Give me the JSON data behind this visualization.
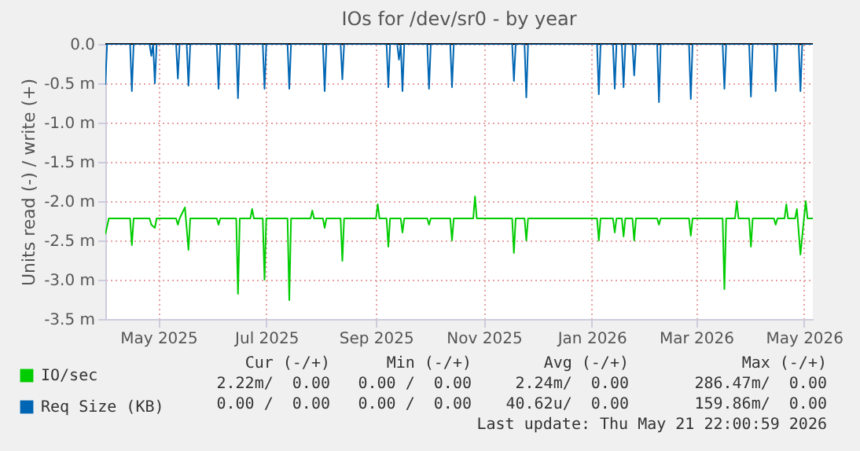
{
  "chart_data": {
    "type": "line",
    "title": "IOs for /dev/sr0 - by year",
    "ylabel": "Units read (-) / write (+)",
    "xlim": [
      "2025-04-16",
      "2026-05-21"
    ],
    "xticks": [
      {
        "value": "2025-05-16",
        "label": "May 2025"
      },
      {
        "value": "2025-07-16",
        "label": "Jul 2025"
      },
      {
        "value": "2025-09-16",
        "label": "Sep 2025"
      },
      {
        "value": "2025-11-16",
        "label": "Nov 2025"
      },
      {
        "value": "2026-01-16",
        "label": "Jan 2026"
      },
      {
        "value": "2026-03-16",
        "label": "Mar 2026"
      },
      {
        "value": "2026-05-16",
        "label": "May 2026"
      }
    ],
    "ylim": [
      -3.5,
      0
    ],
    "yticks": [
      {
        "value": 0,
        "label": "0.0"
      },
      {
        "value": -0.5,
        "label": "-0.5 m"
      },
      {
        "value": -1,
        "label": "-1.0 m"
      },
      {
        "value": -1.5,
        "label": "-1.5 m"
      },
      {
        "value": -2,
        "label": "-2.0 m"
      },
      {
        "value": -2.5,
        "label": "-2.5 m"
      },
      {
        "value": -3,
        "label": "-3.0 m"
      },
      {
        "value": -3.5,
        "label": "-3.5 m"
      }
    ],
    "grid": true,
    "legend": "bottom left",
    "ref_lines": [
      {
        "axis": "y",
        "value": 0,
        "color": "#000000"
      }
    ],
    "series": [
      {
        "name": "IO/sec",
        "color": "#00cc00",
        "x": [
          "2025-04-16",
          "2025-04-18",
          "2025-04-30",
          "2025-05-01",
          "2025-05-02",
          "2025-05-11",
          "2025-05-12",
          "2025-05-14",
          "2025-05-15",
          "2025-05-26",
          "2025-05-27",
          "2025-05-28",
          "2025-05-31",
          "2025-06-02",
          "2025-06-03",
          "2025-06-18",
          "2025-06-19",
          "2025-06-20",
          "2025-06-29",
          "2025-06-30",
          "2025-07-01",
          "2025-07-07",
          "2025-07-08",
          "2025-07-09",
          "2025-07-14",
          "2025-07-15",
          "2025-07-16",
          "2025-07-28",
          "2025-07-29",
          "2025-07-30",
          "2025-08-10",
          "2025-08-11",
          "2025-08-12",
          "2025-08-17",
          "2025-08-18",
          "2025-08-19",
          "2025-08-27",
          "2025-08-28",
          "2025-08-29",
          "2025-09-16",
          "2025-09-17",
          "2025-09-18",
          "2025-09-22",
          "2025-09-23",
          "2025-09-24",
          "2025-09-30",
          "2025-10-01",
          "2025-10-02",
          "2025-10-15",
          "2025-10-16",
          "2025-10-17",
          "2025-10-28",
          "2025-10-29",
          "2025-10-30",
          "2025-11-10",
          "2025-11-11",
          "2025-11-12",
          "2025-12-02",
          "2025-12-03",
          "2025-12-04",
          "2025-12-09",
          "2025-12-10",
          "2025-12-11",
          "2026-01-19",
          "2026-01-20",
          "2026-01-21",
          "2026-01-28",
          "2026-01-29",
          "2026-01-30",
          "2026-02-02",
          "2026-02-03",
          "2026-02-04",
          "2026-02-08",
          "2026-02-09",
          "2026-02-10",
          "2026-02-22",
          "2026-02-23",
          "2026-02-24",
          "2026-03-12",
          "2026-03-13",
          "2026-03-14",
          "2026-03-31",
          "2026-04-01",
          "2026-04-02",
          "2026-04-07",
          "2026-04-08",
          "2026-04-09",
          "2026-04-15",
          "2026-04-16",
          "2026-04-17",
          "2026-04-29",
          "2026-04-30",
          "2026-05-01",
          "2026-05-05",
          "2026-05-06",
          "2026-05-07",
          "2026-05-11",
          "2026-05-12",
          "2026-05-14",
          "2026-05-16",
          "2026-05-17",
          "2026-05-18",
          "2026-05-21"
        ],
        "values": [
          -2.42,
          -2.22,
          -2.22,
          -2.56,
          -2.22,
          -2.22,
          -2.3,
          -2.34,
          -2.22,
          -2.22,
          -2.3,
          -2.22,
          -2.08,
          -2.62,
          -2.22,
          -2.22,
          -2.3,
          -2.22,
          -2.22,
          -3.18,
          -2.22,
          -2.22,
          -2.1,
          -2.22,
          -2.22,
          -3.0,
          -2.22,
          -2.22,
          -3.26,
          -2.22,
          -2.22,
          -2.12,
          -2.22,
          -2.22,
          -2.34,
          -2.22,
          -2.22,
          -2.76,
          -2.22,
          -2.22,
          -2.04,
          -2.22,
          -2.22,
          -2.58,
          -2.22,
          -2.22,
          -2.4,
          -2.22,
          -2.22,
          -2.3,
          -2.22,
          -2.22,
          -2.5,
          -2.22,
          -2.22,
          -1.94,
          -2.22,
          -2.22,
          -2.66,
          -2.22,
          -2.22,
          -2.5,
          -2.22,
          -2.22,
          -2.5,
          -2.22,
          -2.22,
          -2.4,
          -2.22,
          -2.22,
          -2.45,
          -2.22,
          -2.22,
          -2.5,
          -2.22,
          -2.22,
          -2.3,
          -2.22,
          -2.22,
          -2.44,
          -2.22,
          -2.22,
          -3.12,
          -2.22,
          -2.22,
          -2.0,
          -2.22,
          -2.22,
          -2.58,
          -2.22,
          -2.22,
          -2.3,
          -2.22,
          -2.22,
          -2.04,
          -2.22,
          -2.22,
          -2.1,
          -2.68,
          -2.22,
          -2.0,
          -2.22,
          -2.22
        ]
      },
      {
        "name": "Req Size (KB)",
        "color": "#0066b3",
        "x": [
          "2025-04-16",
          "2025-04-17",
          "2025-04-30",
          "2025-05-01",
          "2025-05-02",
          "2025-05-11",
          "2025-05-12",
          "2025-05-13",
          "2025-05-14",
          "2025-05-15",
          "2025-05-26",
          "2025-05-27",
          "2025-05-28",
          "2025-06-01",
          "2025-06-02",
          "2025-06-03",
          "2025-06-18",
          "2025-06-19",
          "2025-06-20",
          "2025-06-29",
          "2025-06-30",
          "2025-07-01",
          "2025-07-14",
          "2025-07-15",
          "2025-07-16",
          "2025-07-28",
          "2025-07-29",
          "2025-07-30",
          "2025-08-17",
          "2025-08-18",
          "2025-08-19",
          "2025-08-27",
          "2025-08-28",
          "2025-08-29",
          "2025-09-22",
          "2025-09-23",
          "2025-09-24",
          "2025-09-28",
          "2025-09-29",
          "2025-09-30",
          "2025-10-01",
          "2025-10-02",
          "2025-10-15",
          "2025-10-16",
          "2025-10-17",
          "2025-10-28",
          "2025-10-29",
          "2025-10-30",
          "2025-12-02",
          "2025-12-03",
          "2025-12-04",
          "2025-12-09",
          "2025-12-10",
          "2025-12-11",
          "2026-01-19",
          "2026-01-20",
          "2026-01-21",
          "2026-01-28",
          "2026-01-29",
          "2026-01-30",
          "2026-02-02",
          "2026-02-03",
          "2026-02-04",
          "2026-02-08",
          "2026-02-09",
          "2026-02-10",
          "2026-02-22",
          "2026-02-23",
          "2026-02-24",
          "2026-03-12",
          "2026-03-13",
          "2026-03-14",
          "2026-03-31",
          "2026-04-01",
          "2026-04-02",
          "2026-04-15",
          "2026-04-16",
          "2026-04-17",
          "2026-04-29",
          "2026-04-30",
          "2026-05-01",
          "2026-05-13",
          "2026-05-14",
          "2026-05-15",
          "2026-05-21"
        ],
        "values": [
          -0.52,
          0,
          0,
          -0.6,
          0,
          0,
          -0.15,
          0,
          -0.5,
          0,
          0,
          -0.44,
          0,
          0,
          -0.53,
          0,
          0,
          -0.57,
          0,
          0,
          -0.69,
          0,
          0,
          -0.57,
          0,
          0,
          -0.57,
          0,
          0,
          -0.6,
          0,
          0,
          -0.45,
          0,
          0,
          -0.55,
          0,
          0,
          -0.2,
          0,
          -0.6,
          0,
          0,
          -0.57,
          0,
          0,
          -0.55,
          0,
          0,
          -0.47,
          0,
          0,
          -0.68,
          0,
          0,
          -0.64,
          0,
          0,
          -0.57,
          0,
          0,
          -0.55,
          0,
          0,
          -0.4,
          0,
          0,
          -0.74,
          0,
          0,
          -0.7,
          0,
          0,
          -0.57,
          0,
          0,
          -0.67,
          0,
          0,
          -0.6,
          0,
          0,
          -0.6,
          0,
          0
        ]
      }
    ],
    "annotations": [
      "Cur (-/+)",
      "Min (-/+)",
      "Avg (-/+)",
      "Max (-/+)",
      "2.22m/  0.00",
      "0.00 /  0.00",
      "2.24m/  0.00",
      "286.47m/  0.00",
      "0.00 /  0.00",
      "0.00 /  0.00",
      "40.62u/  0.00",
      "159.86m/  0.00",
      "Last update: Thu May 21 22:00:59 2026"
    ]
  }
}
